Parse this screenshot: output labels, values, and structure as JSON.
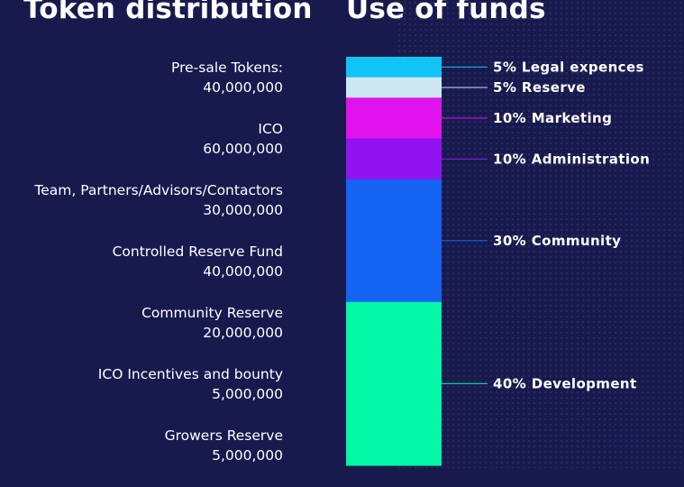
{
  "headings": {
    "left": "Token distribution",
    "right": "Use of funds"
  },
  "token_distribution": [
    {
      "name": "Pre-sale Tokens:",
      "amount": "40,000,000"
    },
    {
      "name": "ICO",
      "amount": "60,000,000"
    },
    {
      "name": "Team, Partners/Advisors/Contactors",
      "amount": "30,000,000"
    },
    {
      "name": "Controlled Reserve Fund",
      "amount": "40,000,000"
    },
    {
      "name": "Community Reserve",
      "amount": "20,000,000"
    },
    {
      "name": "ICO Incentives and bounty",
      "amount": "5,000,000"
    },
    {
      "name": "Growers Reserve",
      "amount": "5,000,000"
    }
  ],
  "chart_data": {
    "type": "bar",
    "stacked": true,
    "title": "Use of funds",
    "categories": [
      "Use of funds"
    ],
    "series": [
      {
        "name": "Legal expences",
        "values": [
          5
        ],
        "color": "#12c3f5",
        "label": "5% Legal expences"
      },
      {
        "name": "Reserve",
        "values": [
          5
        ],
        "color": "#cce7f2",
        "label": "5% Reserve"
      },
      {
        "name": "Marketing",
        "values": [
          10
        ],
        "color": "#e013ef",
        "label": "10% Marketing"
      },
      {
        "name": "Administration",
        "values": [
          10
        ],
        "color": "#9213f2",
        "label": "10% Administration"
      },
      {
        "name": "Community",
        "values": [
          30
        ],
        "color": "#1563f2",
        "label": "30% Community"
      },
      {
        "name": "Development",
        "values": [
          40
        ],
        "color": "#02f7a7",
        "label": "40% Development"
      }
    ],
    "ylim": [
      0,
      100
    ],
    "legend": "right"
  }
}
